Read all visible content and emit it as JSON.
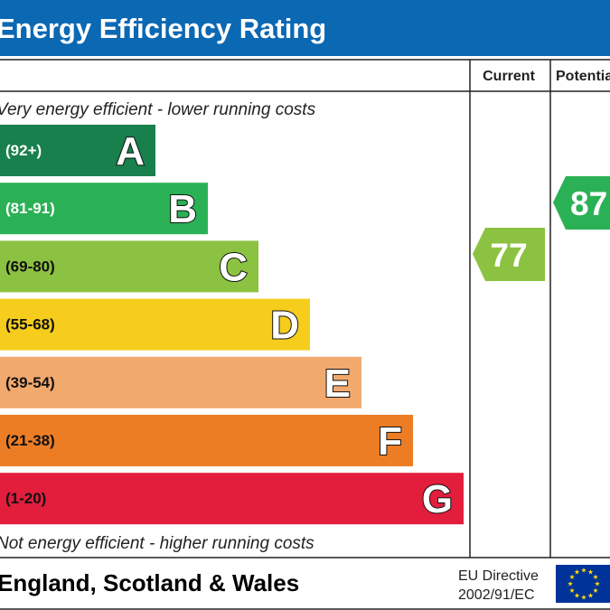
{
  "header": {
    "title": "Energy Efficiency Rating"
  },
  "columns": {
    "current": "Current",
    "potential": "Potential"
  },
  "top_note": "Very energy efficient - lower running costs",
  "bottom_note": "Not energy efficient - higher running costs",
  "bands": [
    {
      "range": "(92+)",
      "letter": "A",
      "color": "#17804c",
      "text_color": "#ffffff"
    },
    {
      "range": "(81-91)",
      "letter": "B",
      "color": "#2bb155",
      "text_color": "#ffffff"
    },
    {
      "range": "(69-80)",
      "letter": "C",
      "color": "#8cc241",
      "text_color": "#111111"
    },
    {
      "range": "(55-68)",
      "letter": "D",
      "color": "#f6cd1c",
      "text_color": "#111111"
    },
    {
      "range": "(39-54)",
      "letter": "E",
      "color": "#f2a96d",
      "text_color": "#111111"
    },
    {
      "range": "(21-38)",
      "letter": "F",
      "color": "#ec7d25",
      "text_color": "#111111"
    },
    {
      "range": "(1-20)",
      "letter": "G",
      "color": "#e31d3c",
      "text_color": "#111111"
    }
  ],
  "current": {
    "value": 77,
    "color": "#8cc241"
  },
  "potential": {
    "value": 87,
    "color": "#2bb155"
  },
  "footer": {
    "region": "England, Scotland & Wales",
    "directive": "EU Directive",
    "directive_code": "2002/91/EC"
  }
}
